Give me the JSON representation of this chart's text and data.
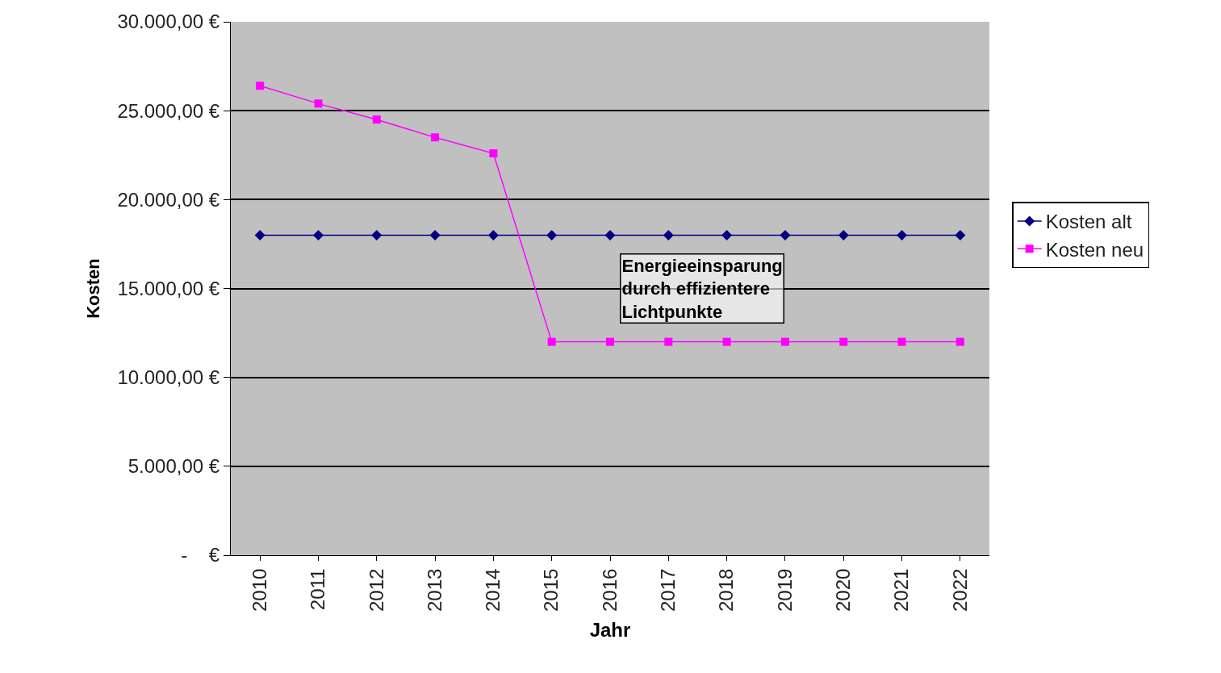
{
  "chart_data": {
    "type": "line",
    "xlabel": "Jahr",
    "ylabel": "Kosten",
    "categories": [
      "2010",
      "2011",
      "2012",
      "2013",
      "2014",
      "2015",
      "2016",
      "2017",
      "2018",
      "2019",
      "2020",
      "2021",
      "2022"
    ],
    "series": [
      {
        "name": "Kosten alt",
        "color": "#000080",
        "marker": "diamond",
        "values": [
          18000,
          18000,
          18000,
          18000,
          18000,
          18000,
          18000,
          18000,
          18000,
          18000,
          18000,
          18000,
          18000
        ]
      },
      {
        "name": "Kosten neu",
        "color": "#ff00ff",
        "marker": "square",
        "values": [
          26400,
          25400,
          24500,
          23500,
          22600,
          12000,
          12000,
          12000,
          12000,
          12000,
          12000,
          12000,
          12000
        ]
      }
    ],
    "ylim": [
      0,
      30000
    ],
    "yticks": [
      {
        "value": 0,
        "label": "-    €"
      },
      {
        "value": 5000,
        "label": "5.000,00 €"
      },
      {
        "value": 10000,
        "label": "10.000,00 €"
      },
      {
        "value": 15000,
        "label": "15.000,00 €"
      },
      {
        "value": 20000,
        "label": "20.000,00 €"
      },
      {
        "value": 25000,
        "label": "25.000,00 €"
      },
      {
        "value": 30000,
        "label": "30.000,00 €"
      }
    ],
    "grid": "y",
    "legend": "right",
    "line_style": "solid",
    "annotations": [
      "Energieeinsparung\ndurch effizientere\nLichtpunkte"
    ]
  }
}
